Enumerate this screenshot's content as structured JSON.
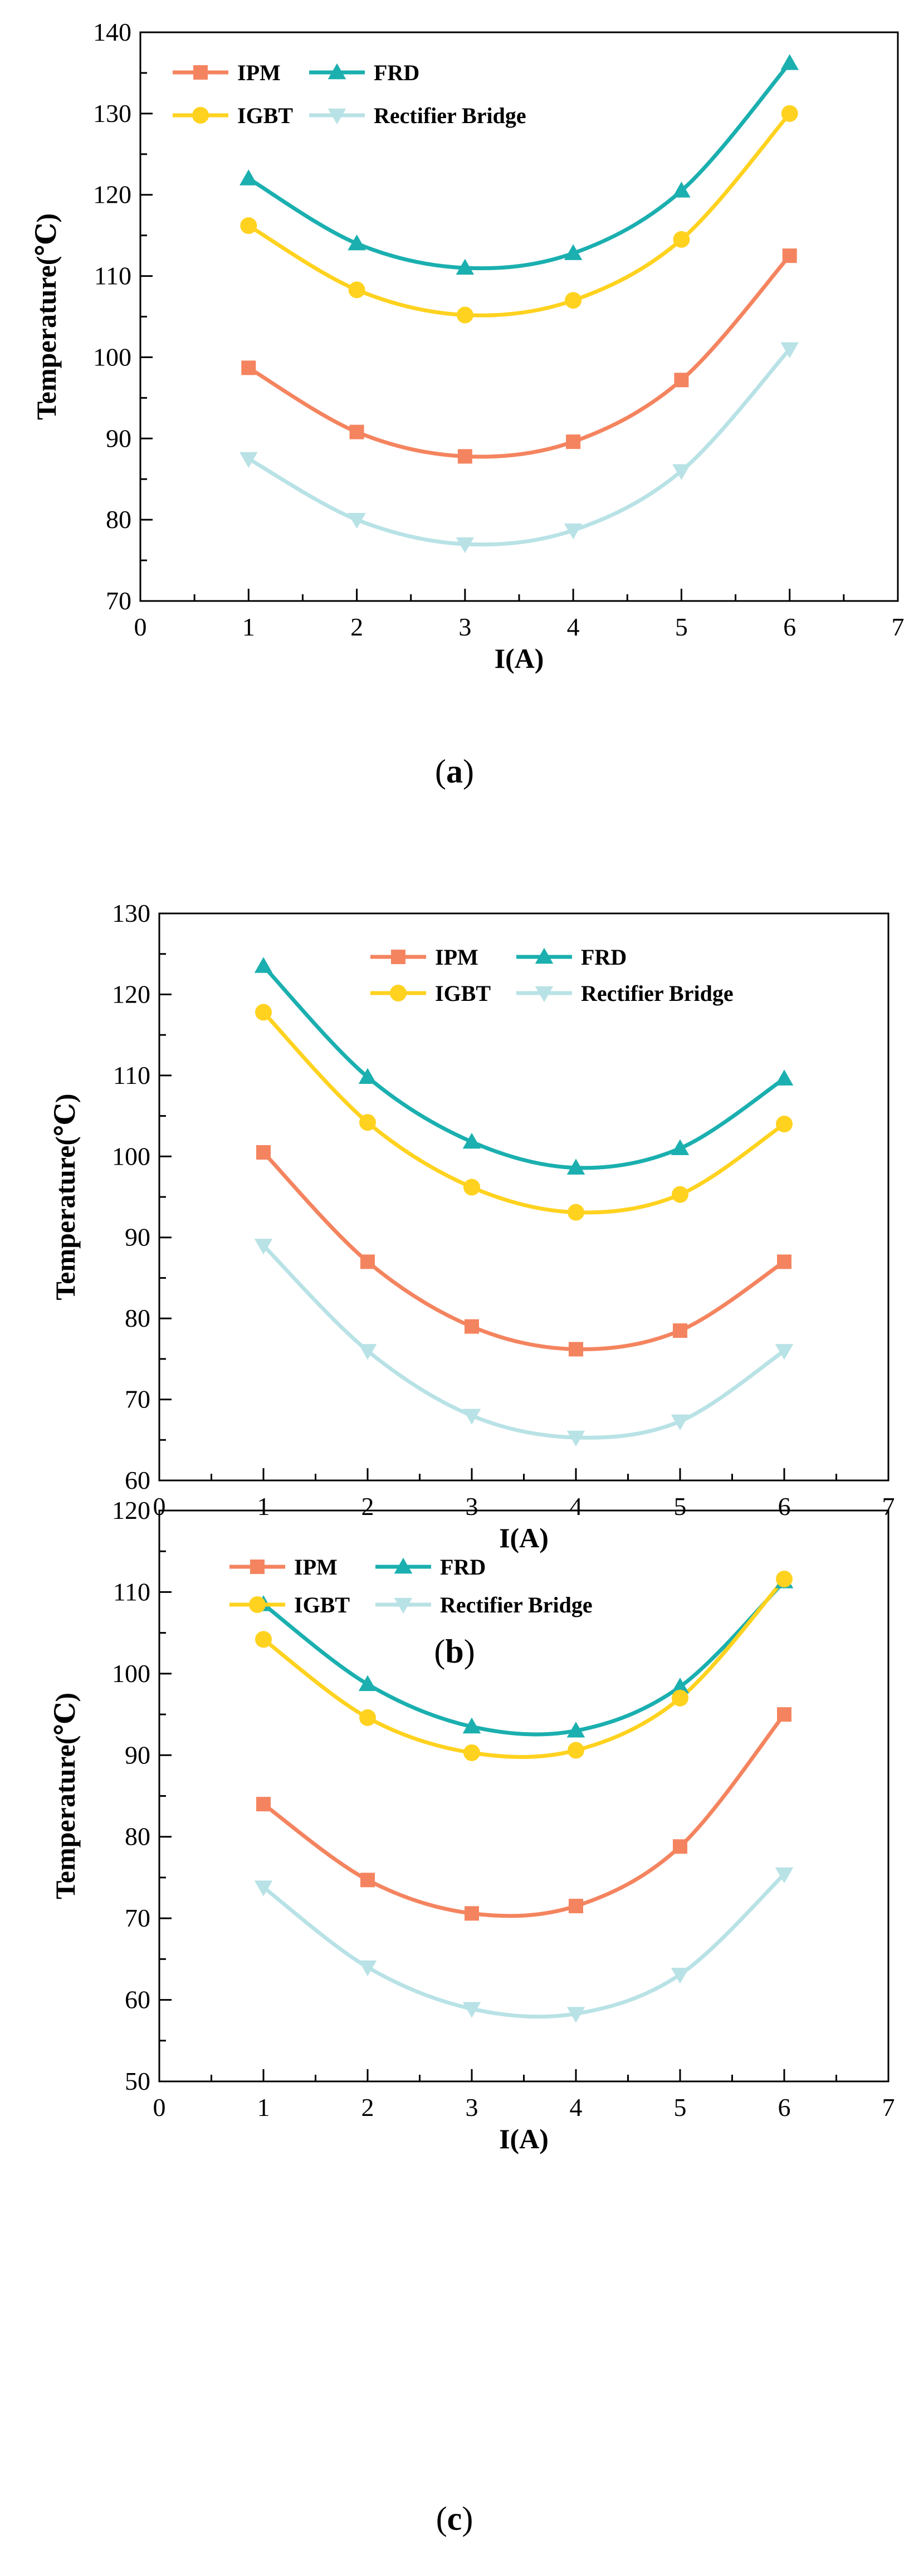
{
  "figure": {
    "charts": [
      {
        "caption_letter": "a",
        "caption": "(a)"
      },
      {
        "caption_letter": "b",
        "caption": "(b)"
      },
      {
        "caption_letter": "c",
        "caption": "(c)"
      }
    ]
  },
  "chart_data": [
    {
      "type": "line",
      "title": "",
      "xlabel": "I(A)",
      "ylabel": "Temperature(℃)",
      "xlim": [
        0,
        7
      ],
      "ylim": [
        70,
        140
      ],
      "xticks": [
        0,
        1,
        2,
        3,
        4,
        5,
        6,
        7
      ],
      "yticks": [
        70,
        80,
        90,
        100,
        110,
        120,
        130,
        140
      ],
      "x": [
        1,
        2,
        3,
        4,
        5,
        6
      ],
      "legend_position": "top-left",
      "grid": false,
      "series": [
        {
          "name": "IPM",
          "color": "#F4845F",
          "marker": "square",
          "values": [
            98.7,
            90.8,
            87.8,
            89.6,
            97.2,
            112.5
          ]
        },
        {
          "name": "FRD",
          "color": "#1BAFAF",
          "marker": "triangle-up",
          "values": [
            122.0,
            114.0,
            111.0,
            112.8,
            120.5,
            136.2
          ]
        },
        {
          "name": "IGBT",
          "color": "#FFD21F",
          "marker": "circle",
          "values": [
            116.2,
            108.3,
            105.2,
            107.0,
            114.5,
            130.0
          ]
        },
        {
          "name": "Rectifier Bridge",
          "color": "#B8E2E6",
          "marker": "triangle-down",
          "values": [
            87.5,
            80.0,
            77.0,
            78.7,
            86.0,
            101.0
          ]
        }
      ]
    },
    {
      "type": "line",
      "title": "",
      "xlabel": "I(A)",
      "ylabel": "Temperature(℃)",
      "xlim": [
        0,
        7
      ],
      "ylim": [
        60,
        130
      ],
      "xticks": [
        0,
        1,
        2,
        3,
        4,
        5,
        6,
        7
      ],
      "yticks": [
        60,
        70,
        80,
        90,
        100,
        110,
        120,
        130
      ],
      "x": [
        1,
        2,
        3,
        4,
        5,
        6
      ],
      "legend_position": "top-right",
      "grid": false,
      "series": [
        {
          "name": "IPM",
          "color": "#F4845F",
          "marker": "square",
          "values": [
            100.5,
            87.0,
            79.0,
            76.2,
            78.5,
            87.0
          ]
        },
        {
          "name": "FRD",
          "color": "#1BAFAF",
          "marker": "triangle-up",
          "values": [
            123.5,
            109.8,
            101.8,
            98.6,
            101.0,
            109.6
          ]
        },
        {
          "name": "IGBT",
          "color": "#FFD21F",
          "marker": "circle",
          "values": [
            117.8,
            104.2,
            96.2,
            93.1,
            95.3,
            104.0
          ]
        },
        {
          "name": "Rectifier Bridge",
          "color": "#B8E2E6",
          "marker": "triangle-down",
          "values": [
            89.0,
            76.0,
            68.0,
            65.3,
            67.3,
            76.0
          ]
        }
      ]
    },
    {
      "type": "line",
      "title": "",
      "xlabel": "I(A)",
      "ylabel": "Temperature(℃)",
      "xlim": [
        0,
        7
      ],
      "ylim": [
        50,
        120
      ],
      "xticks": [
        0,
        1,
        2,
        3,
        4,
        5,
        6,
        7
      ],
      "yticks": [
        50,
        60,
        70,
        80,
        90,
        100,
        110,
        120
      ],
      "x": [
        1,
        2,
        3,
        4,
        5,
        6
      ],
      "legend_position": "top",
      "grid": false,
      "series": [
        {
          "name": "IPM",
          "color": "#F4845F",
          "marker": "square",
          "values": [
            84.0,
            74.7,
            70.6,
            71.5,
            78.8,
            95.0
          ]
        },
        {
          "name": "FRD",
          "color": "#1BAFAF",
          "marker": "triangle-up",
          "values": [
            108.5,
            98.7,
            93.5,
            93.0,
            98.4,
            111.3
          ]
        },
        {
          "name": "IGBT",
          "color": "#FFD21F",
          "marker": "circle",
          "values": [
            104.2,
            94.6,
            90.3,
            90.6,
            97.0,
            111.6
          ]
        },
        {
          "name": "Rectifier Bridge",
          "color": "#B8E2E6",
          "marker": "triangle-down",
          "values": [
            73.8,
            64.0,
            58.9,
            58.3,
            63.1,
            75.4
          ]
        }
      ]
    }
  ]
}
